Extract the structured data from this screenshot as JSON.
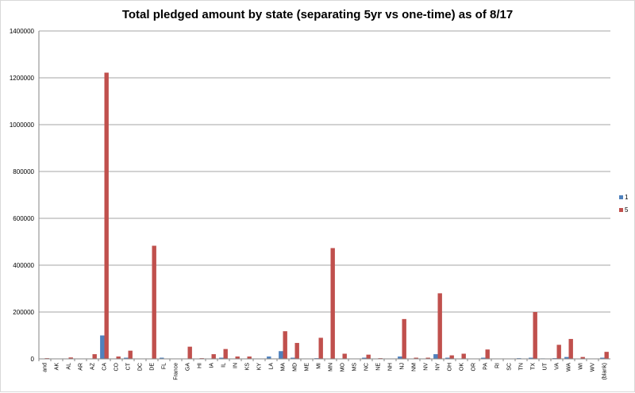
{
  "chart_data": {
    "type": "bar",
    "title": "Total pledged amount by state (separating 5yr vs one-time) as of 8/17",
    "xlabel": "",
    "ylabel": "",
    "ylim": [
      0,
      1400000
    ],
    "yticks": [
      "0",
      "200000",
      "400000",
      "600000",
      "800000",
      "1000000",
      "1200000",
      "1400000"
    ],
    "grid": true,
    "legend_position": "right",
    "categories": [
      "and",
      "AK",
      "AL",
      "AR",
      "AZ",
      "CA",
      "CO",
      "CT",
      "DC",
      "DE",
      "FL",
      "France",
      "GA",
      "HI",
      "IA",
      "IL",
      "IN",
      "KS",
      "KY",
      "LA",
      "MA",
      "MD",
      "ME",
      "MI",
      "MN",
      "MO",
      "MS",
      "NC",
      "NE",
      "NH",
      "NJ",
      "NM",
      "NV",
      "NY",
      "OH",
      "OK",
      "OR",
      "PA",
      "RI",
      "SC",
      "TN",
      "TX",
      "UT",
      "VA",
      "WA",
      "WI",
      "WV",
      "(blank)"
    ],
    "series": [
      {
        "name": "1",
        "color": "#4f81bd",
        "values": [
          0,
          0,
          0,
          0,
          0,
          100000,
          0,
          5000,
          0,
          0,
          5000,
          0,
          0,
          0,
          0,
          5000,
          0,
          0,
          0,
          10000,
          33000,
          5000,
          0,
          3000,
          0,
          0,
          0,
          5000,
          0,
          0,
          10000,
          0,
          0,
          20000,
          5000,
          0,
          0,
          5000,
          0,
          0,
          3000,
          5000,
          2000,
          3000,
          8000,
          0,
          0,
          5000
        ]
      },
      {
        "name": "5",
        "color": "#c0504d",
        "values": [
          3000,
          0,
          6000,
          0,
          20000,
          1222000,
          10000,
          35000,
          0,
          483000,
          0,
          0,
          52000,
          3000,
          20000,
          42000,
          10000,
          10000,
          0,
          0,
          118000,
          68000,
          0,
          90000,
          473000,
          22000,
          0,
          18000,
          3000,
          0,
          170000,
          5000,
          5000,
          280000,
          15000,
          22000,
          0,
          40000,
          0,
          0,
          0,
          200000,
          0,
          60000,
          85000,
          8000,
          0,
          30000
        ]
      }
    ]
  }
}
